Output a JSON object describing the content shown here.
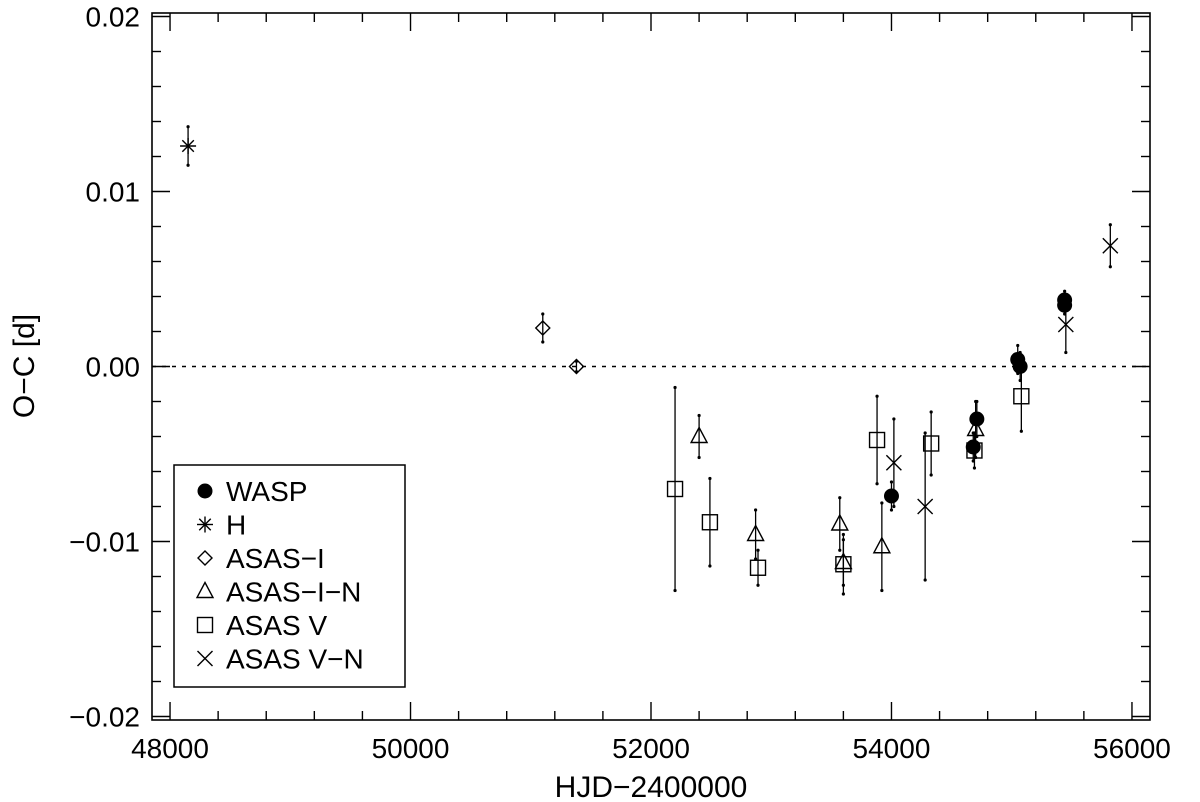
{
  "chart_data": {
    "type": "scatter",
    "xlabel": "HJD−2400000",
    "ylabel": "O−C [d]",
    "xlim": [
      47850,
      56150
    ],
    "ylim": [
      -0.0202,
      0.0202
    ],
    "xticks": [
      48000,
      50000,
      52000,
      54000,
      56000
    ],
    "xtick_labels": [
      "48000",
      "50000",
      "52000",
      "54000",
      "56000"
    ],
    "yticks": [
      -0.02,
      -0.01,
      0.0,
      0.01,
      0.02
    ],
    "ytick_labels": [
      "−0.02",
      "−0.01",
      "0.00",
      "0.01",
      "0.02"
    ],
    "reference_line": {
      "y": 0.0,
      "style": "dotted"
    },
    "legend_position": "lower-left",
    "series": [
      {
        "name": "WASP",
        "marker": "filled-circle",
        "points": [
          {
            "x": 54000,
            "y": -0.0074,
            "err": 0.0008
          },
          {
            "x": 54680,
            "y": -0.0046,
            "err": 0.0008
          },
          {
            "x": 54710,
            "y": -0.003,
            "err": 0.001
          },
          {
            "x": 55050,
            "y": 0.0004,
            "err": 0.0008
          },
          {
            "x": 55070,
            "y": 0.0,
            "err": 0.0008
          },
          {
            "x": 55440,
            "y": 0.0038,
            "err": 0.0005
          },
          {
            "x": 55440,
            "y": 0.0035,
            "err": 0.0005
          }
        ]
      },
      {
        "name": "H",
        "marker": "asterisk",
        "points": [
          {
            "x": 48150,
            "y": 0.0126,
            "err": 0.0011
          }
        ]
      },
      {
        "name": "ASAS−I",
        "marker": "diamond",
        "points": [
          {
            "x": 51100,
            "y": 0.0022,
            "err": 0.0008
          },
          {
            "x": 51380,
            "y": 0.0,
            "err": 0.0003
          }
        ]
      },
      {
        "name": "ASAS−I−N",
        "marker": "triangle",
        "points": [
          {
            "x": 52400,
            "y": -0.004,
            "err": 0.0012
          },
          {
            "x": 52870,
            "y": -0.0096,
            "err": 0.0014
          },
          {
            "x": 53570,
            "y": -0.009,
            "err": 0.0015
          },
          {
            "x": 53600,
            "y": -0.0112,
            "err": 0.0013
          },
          {
            "x": 53920,
            "y": -0.0103,
            "err": 0.0025
          },
          {
            "x": 54700,
            "y": -0.0036,
            "err": 0.0016
          }
        ]
      },
      {
        "name": "ASAS V",
        "marker": "square",
        "points": [
          {
            "x": 52200,
            "y": -0.007,
            "err": 0.0058
          },
          {
            "x": 52490,
            "y": -0.0089,
            "err": 0.0025
          },
          {
            "x": 52890,
            "y": -0.0115,
            "err": 0.001
          },
          {
            "x": 53600,
            "y": -0.0113,
            "err": 0.0017
          },
          {
            "x": 53880,
            "y": -0.0042,
            "err": 0.0025
          },
          {
            "x": 54330,
            "y": -0.0044,
            "err": 0.0018
          },
          {
            "x": 54690,
            "y": -0.0048,
            "err": 0.001
          },
          {
            "x": 55080,
            "y": -0.0017,
            "err": 0.002
          }
        ]
      },
      {
        "name": "ASAS V−N",
        "marker": "x",
        "points": [
          {
            "x": 54020,
            "y": -0.0055,
            "err": 0.0025
          },
          {
            "x": 54280,
            "y": -0.008,
            "err": 0.0042
          },
          {
            "x": 55450,
            "y": 0.0024,
            "err": 0.0016
          },
          {
            "x": 55820,
            "y": 0.0069,
            "err": 0.0012
          }
        ]
      }
    ]
  }
}
